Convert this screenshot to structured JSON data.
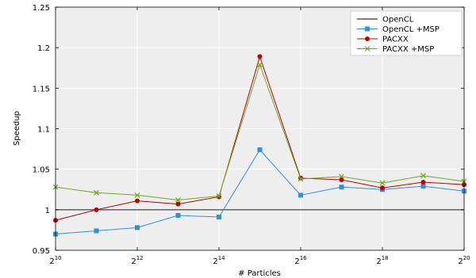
{
  "chart_data": {
    "type": "line",
    "xlabel": "# Particles",
    "ylabel": "Speedup",
    "x": [
      10,
      11,
      12,
      13,
      14,
      15,
      16,
      17,
      18,
      19,
      20
    ],
    "x_tick_values": [
      10,
      12,
      14,
      16,
      18,
      20
    ],
    "x_tick_base": "2",
    "y_ticks": [
      "0.95",
      "1",
      "1.05",
      "1.1",
      "1.15",
      "1.2",
      "1.25"
    ],
    "xlim": [
      10,
      20
    ],
    "ylim": [
      0.95,
      1.25
    ],
    "grid": true,
    "legend_position": "top-right",
    "series": [
      {
        "name": "OpenCL",
        "marker": "none",
        "color": "#555555",
        "values": [
          1.0,
          1.0,
          1.0,
          1.0,
          1.0,
          1.0,
          1.0,
          1.0,
          1.0,
          1.0,
          1.0
        ]
      },
      {
        "name": "OpenCL +MSP",
        "marker": "square",
        "color": "#2f8fe0",
        "values": [
          0.97,
          0.974,
          0.978,
          0.993,
          0.991,
          1.074,
          1.018,
          1.028,
          1.025,
          1.029,
          1.023
        ]
      },
      {
        "name": "PACXX",
        "marker": "circle",
        "color": "#c00000",
        "values": [
          0.987,
          1.0,
          1.011,
          1.007,
          1.016,
          1.189,
          1.039,
          1.037,
          1.027,
          1.034,
          1.031
        ]
      },
      {
        "name": "PACXX +MSP",
        "marker": "x",
        "color": "#6aaa1e",
        "values": [
          1.028,
          1.021,
          1.018,
          1.012,
          1.017,
          1.179,
          1.038,
          1.041,
          1.033,
          1.042,
          1.035
        ]
      }
    ]
  }
}
